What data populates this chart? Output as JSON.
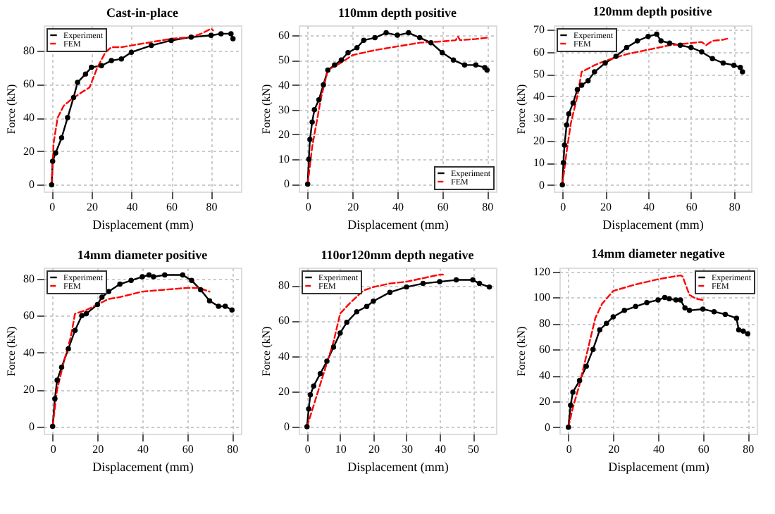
{
  "chart_data": [
    {
      "type": "line",
      "title": "Cast-in-place",
      "xlabel": "Displacement (mm)",
      "ylabel": "Force (kN)",
      "xlim": [
        -4,
        95
      ],
      "ylim": [
        -4,
        95
      ],
      "xticks": [
        0,
        20,
        40,
        60,
        80
      ],
      "yticks": [
        0,
        20,
        40,
        60,
        80
      ],
      "grid": true,
      "legend": "top left",
      "series": [
        {
          "name": "Experiment",
          "color": "#000000",
          "marker": "circle",
          "line_style": "solid",
          "x": [
            0,
            0.5,
            2,
            5,
            8,
            11,
            13,
            17,
            20,
            25,
            30,
            35,
            40,
            50,
            60,
            70,
            80,
            85,
            90,
            91
          ],
          "values": [
            0,
            14,
            19,
            28,
            40,
            52,
            61,
            66,
            70,
            71,
            74,
            75,
            79,
            83,
            86,
            88,
            89,
            90,
            90,
            87
          ]
        },
        {
          "name": "FEM",
          "color": "#ff0000",
          "marker": "none",
          "line_style": "dashed",
          "x": [
            0,
            1,
            3,
            6,
            10,
            15,
            19,
            23,
            27,
            30,
            35,
            40,
            50,
            60,
            70,
            75,
            80,
            81
          ],
          "values": [
            0,
            25,
            40,
            47,
            51,
            55,
            58,
            70,
            79,
            82,
            82,
            83,
            85,
            87,
            88,
            90,
            93,
            92
          ]
        }
      ]
    },
    {
      "type": "line",
      "title": "110mm depth positive",
      "xlabel": "Displacement (mm)",
      "ylabel": "Force (kN)",
      "xlim": [
        -4,
        84
      ],
      "ylim": [
        -3,
        64
      ],
      "xticks": [
        0,
        20,
        40,
        60,
        80
      ],
      "yticks": [
        0,
        10,
        20,
        30,
        40,
        50,
        60
      ],
      "grid": true,
      "legend": "bottom right",
      "series": [
        {
          "name": "Experiment",
          "color": "#000000",
          "marker": "circle",
          "line_style": "solid",
          "x": [
            0,
            0.5,
            1,
            2,
            3,
            5,
            7,
            9,
            12,
            15,
            18,
            22,
            25,
            30,
            35,
            40,
            45,
            50,
            55,
            60,
            65,
            70,
            75,
            79,
            80
          ],
          "values": [
            0,
            10,
            18,
            25,
            30,
            34,
            40,
            46,
            48,
            50,
            53,
            55,
            58,
            59,
            61,
            60,
            61,
            59,
            57,
            53,
            50,
            48,
            48,
            47,
            46
          ]
        },
        {
          "name": "FEM",
          "color": "#ff0000",
          "marker": "none",
          "line_style": "dashed",
          "x": [
            0,
            2,
            4,
            6,
            9,
            15,
            20,
            30,
            40,
            50,
            60,
            66,
            67,
            68,
            75,
            80
          ],
          "values": [
            0,
            15,
            25,
            35,
            46,
            49,
            52,
            54,
            55.5,
            57,
            57.5,
            58,
            59.5,
            58,
            58.5,
            59
          ]
        }
      ]
    },
    {
      "type": "line",
      "title": "120mm depth positive",
      "xlabel": "Displacement (mm)",
      "ylabel": "Force (kN)",
      "xlim": [
        -4,
        88
      ],
      "ylim": [
        -3,
        72
      ],
      "xticks": [
        0,
        20,
        40,
        60,
        80
      ],
      "yticks": [
        0,
        10,
        20,
        30,
        40,
        50,
        60,
        70
      ],
      "grid": true,
      "legend": "top left",
      "series": [
        {
          "name": "Experiment",
          "color": "#000000",
          "marker": "circle",
          "line_style": "solid",
          "x": [
            0,
            0.5,
            1,
            2,
            3,
            5,
            7,
            9,
            12,
            15,
            20,
            25,
            30,
            35,
            40,
            44,
            46,
            50,
            55,
            60,
            65,
            70,
            75,
            80,
            83,
            84
          ],
          "values": [
            0,
            10,
            18,
            27,
            32,
            37,
            43,
            45,
            47,
            51,
            55,
            58,
            62,
            65,
            67,
            68,
            65,
            64,
            63,
            62,
            60,
            57,
            55,
            54,
            53,
            51
          ]
        },
        {
          "name": "FEM",
          "color": "#ff0000",
          "marker": "none",
          "line_style": "dashed",
          "x": [
            0,
            2,
            4,
            7,
            9,
            15,
            20,
            30,
            40,
            50,
            60,
            65,
            67,
            70,
            75,
            77
          ],
          "values": [
            0,
            15,
            28,
            40,
            51,
            54,
            56,
            59,
            61,
            63,
            64,
            64.5,
            63,
            65,
            65.5,
            66
          ]
        }
      ]
    },
    {
      "type": "line",
      "title": "14mm diameter positive",
      "xlabel": "Displacement (mm)",
      "ylabel": "Force (kN)",
      "xlim": [
        -4,
        84
      ],
      "ylim": [
        -4,
        86
      ],
      "xticks": [
        0,
        20,
        40,
        60,
        80
      ],
      "yticks": [
        0,
        20,
        40,
        60,
        80
      ],
      "grid": true,
      "legend": "top left",
      "series": [
        {
          "name": "Experiment",
          "color": "#000000",
          "marker": "circle",
          "line_style": "solid",
          "x": [
            0,
            1,
            2,
            4,
            7,
            10,
            13,
            15,
            20,
            22,
            25,
            30,
            35,
            40,
            43,
            45,
            50,
            58,
            62,
            66,
            70,
            74,
            77,
            80
          ],
          "values": [
            0,
            15,
            25,
            32,
            42,
            52,
            60,
            61,
            66,
            70,
            73,
            77,
            79,
            81,
            82,
            81,
            82,
            82,
            79,
            74,
            68,
            65,
            65,
            63
          ]
        },
        {
          "name": "FEM",
          "color": "#ff0000",
          "marker": "none",
          "line_style": "dashed",
          "x": [
            0,
            2,
            5,
            8,
            10,
            15,
            20,
            25,
            30,
            40,
            50,
            60,
            65,
            70
          ],
          "values": [
            0,
            20,
            35,
            48,
            61,
            63,
            66,
            69,
            70,
            73,
            74,
            75,
            75,
            73
          ]
        }
      ]
    },
    {
      "type": "line",
      "title": "110or120mm depth negative",
      "xlabel": "Displacement (mm)",
      "ylabel": "Force (kN)",
      "xlim": [
        -2.5,
        57
      ],
      "ylim": [
        -4,
        90
      ],
      "xticks": [
        0,
        10,
        20,
        30,
        40,
        50
      ],
      "yticks": [
        0,
        20,
        40,
        60,
        80
      ],
      "grid": true,
      "legend": "top left",
      "series": [
        {
          "name": "Experiment",
          "color": "#000000",
          "marker": "circle",
          "line_style": "solid",
          "x": [
            0,
            0.5,
            1,
            2,
            4,
            6,
            8,
            10,
            12,
            15,
            18,
            20,
            25,
            30,
            35,
            40,
            45,
            50,
            52,
            55
          ],
          "values": [
            0,
            10,
            18,
            23,
            30,
            37,
            45,
            53,
            59,
            65,
            68,
            71,
            76,
            79,
            81,
            82,
            83,
            83,
            81,
            79
          ]
        },
        {
          "name": "FEM",
          "color": "#ff0000",
          "marker": "none",
          "line_style": "dashed",
          "x": [
            0,
            2,
            5,
            8,
            10,
            13,
            17,
            20,
            25,
            30,
            35,
            40,
            41
          ],
          "values": [
            0,
            12,
            30,
            48,
            64,
            70,
            77,
            79,
            81,
            82,
            84,
            86,
            86
          ]
        }
      ]
    },
    {
      "type": "line",
      "title": "14mm diameter negative",
      "xlabel": "Displacement (mm)",
      "ylabel": "Force (kN)",
      "xlim": [
        -4,
        84
      ],
      "ylim": [
        -5,
        123
      ],
      "xticks": [
        0,
        20,
        40,
        60,
        80
      ],
      "yticks": [
        0,
        20,
        40,
        60,
        80,
        100,
        120
      ],
      "grid": true,
      "legend": "top right",
      "series": [
        {
          "name": "Experiment",
          "color": "#000000",
          "marker": "circle",
          "line_style": "solid",
          "x": [
            0,
            1,
            2,
            5,
            8,
            11,
            14,
            17,
            20,
            25,
            30,
            35,
            40,
            43,
            45,
            48,
            50,
            52,
            54,
            60,
            65,
            70,
            75,
            76,
            78,
            80
          ],
          "values": [
            0,
            17,
            27,
            36,
            47,
            60,
            75,
            80,
            85,
            90,
            93,
            96,
            98,
            100,
            99,
            98,
            98,
            92,
            90,
            91,
            89,
            87,
            84,
            75,
            74,
            72
          ]
        },
        {
          "name": "FEM",
          "color": "#ff0000",
          "marker": "none",
          "line_style": "dashed",
          "x": [
            0,
            2,
            5,
            8,
            12,
            15,
            20,
            30,
            40,
            50,
            51,
            54,
            57,
            60
          ],
          "values": [
            0,
            15,
            33,
            55,
            84,
            95,
            105,
            110,
            114,
            117,
            116,
            102,
            99,
            98
          ]
        }
      ]
    }
  ]
}
